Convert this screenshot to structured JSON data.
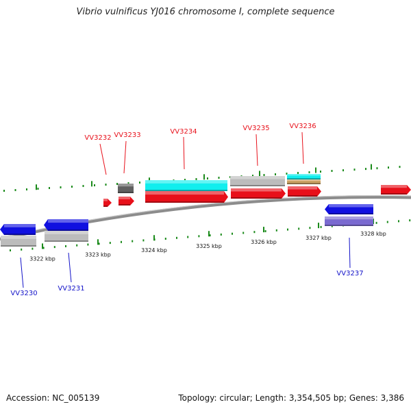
{
  "title": "Vibrio vulnificus YJ016 chromosome I, complete sequence",
  "footer": {
    "accession": "Accession: NC_005139",
    "summary": "Topology: circular; Length: 3,354,505 bp; Genes: 3,386"
  },
  "colors": {
    "forward_label": "#e8101a",
    "reverse_label": "#1010c8",
    "tick": "#1a8a1a",
    "backbone": "#8c8c8c"
  },
  "ticks": [
    {
      "kbp": 3322,
      "label": "3322 kbp"
    },
    {
      "kbp": 3323,
      "label": "3323 kbp"
    },
    {
      "kbp": 3324,
      "label": "3324 kbp"
    },
    {
      "kbp": 3325,
      "label": "3325 kbp"
    },
    {
      "kbp": 3326,
      "label": "3326 kbp"
    },
    {
      "kbp": 3327,
      "label": "3327 kbp"
    },
    {
      "kbp": 3328,
      "label": "3328 kbp"
    }
  ],
  "genes": [
    {
      "id": "VV3230",
      "strand": "reverse"
    },
    {
      "id": "VV3231",
      "strand": "reverse"
    },
    {
      "id": "VV3232",
      "strand": "forward"
    },
    {
      "id": "VV3233",
      "strand": "forward"
    },
    {
      "id": "VV3234",
      "strand": "forward"
    },
    {
      "id": "VV3235",
      "strand": "forward"
    },
    {
      "id": "VV3236",
      "strand": "forward"
    },
    {
      "id": "VV3237",
      "strand": "reverse"
    }
  ]
}
